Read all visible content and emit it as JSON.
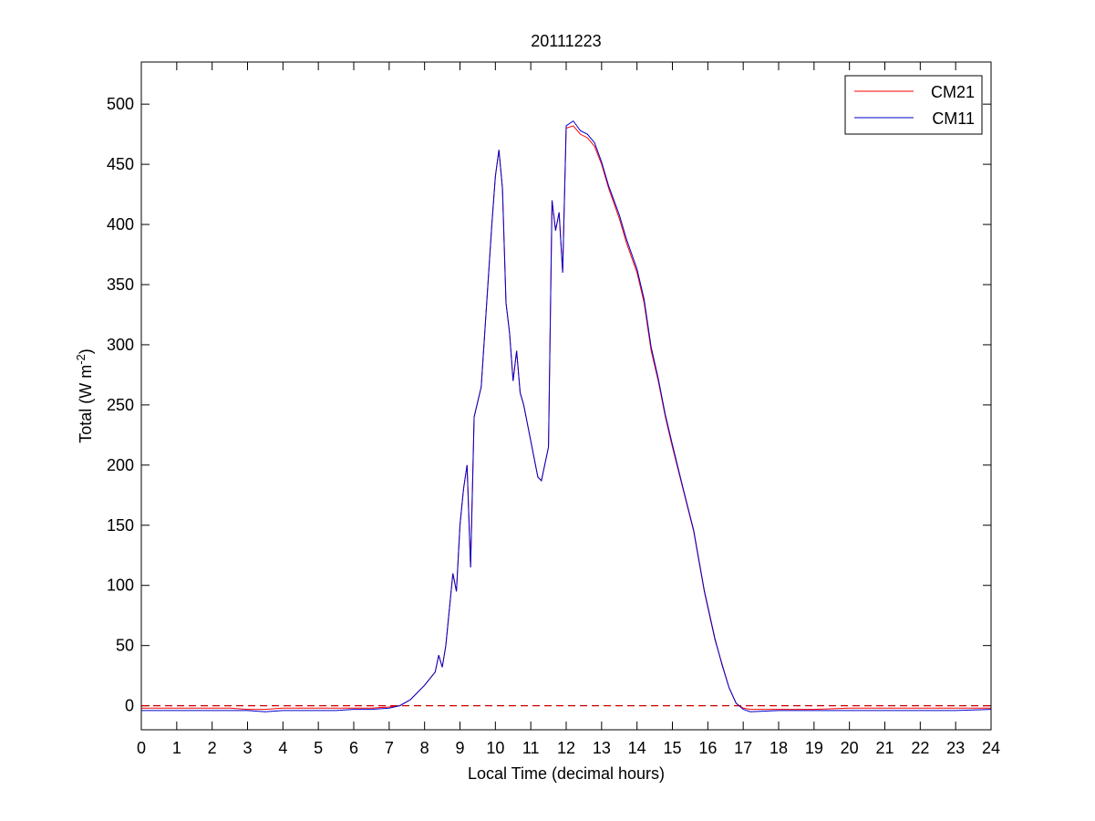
{
  "chart_data": {
    "type": "line",
    "title": "20111223",
    "xlabel": "Local Time (decimal hours)",
    "ylabel": [
      "Total (W m",
      "-2",
      ")"
    ],
    "x": [
      0,
      0.5,
      1,
      1.5,
      2,
      2.5,
      3,
      3.5,
      4,
      4.5,
      5,
      5.5,
      6,
      6.5,
      7,
      7.3,
      7.6,
      8,
      8.3,
      8.4,
      8.5,
      8.6,
      8.7,
      8.8,
      8.9,
      9.0,
      9.1,
      9.2,
      9.3,
      9.4,
      9.6,
      9.7,
      9.9,
      10.0,
      10.1,
      10.2,
      10.3,
      10.4,
      10.5,
      10.6,
      10.7,
      10.8,
      11.0,
      11.2,
      11.3,
      11.5,
      11.6,
      11.7,
      11.8,
      11.9,
      12.0,
      12.2,
      12.4,
      12.6,
      12.8,
      13.0,
      13.2,
      13.5,
      13.7,
      14.0,
      14.2,
      14.4,
      14.6,
      14.8,
      15.0,
      15.3,
      15.6,
      15.9,
      16.2,
      16.4,
      16.6,
      16.8,
      17.0,
      17.2,
      18,
      19,
      20,
      21,
      22,
      23,
      24
    ],
    "series": [
      {
        "name": "CM21",
        "color": "#ff0000",
        "values": [
          -2,
          -2,
          -2,
          -2,
          -2,
          -2,
          -3,
          -3,
          -2,
          -2,
          -2,
          -2,
          -2,
          -2,
          -1,
          0,
          5,
          17,
          28,
          42,
          32,
          50,
          80,
          110,
          95,
          150,
          180,
          200,
          115,
          240,
          265,
          310,
          400,
          440,
          462,
          430,
          335,
          310,
          270,
          295,
          260,
          250,
          220,
          190,
          187,
          215,
          420,
          395,
          410,
          360,
          480,
          482,
          475,
          472,
          465,
          450,
          430,
          405,
          385,
          360,
          335,
          295,
          270,
          240,
          215,
          180,
          145,
          95,
          55,
          35,
          15,
          2,
          -2,
          -3,
          -3,
          -3,
          -2,
          -2,
          -2,
          -2,
          -2
        ]
      },
      {
        "name": "CM11",
        "color": "#0000cc",
        "values": [
          -4,
          -4,
          -4,
          -4,
          -4,
          -4,
          -4,
          -5,
          -4,
          -4,
          -4,
          -4,
          -3,
          -3,
          -2,
          0,
          5,
          17,
          28,
          42,
          32,
          50,
          80,
          110,
          95,
          150,
          180,
          200,
          115,
          240,
          265,
          310,
          400,
          440,
          462,
          430,
          335,
          310,
          270,
          295,
          260,
          250,
          220,
          190,
          187,
          215,
          420,
          395,
          410,
          360,
          482,
          486,
          478,
          475,
          468,
          452,
          432,
          408,
          388,
          363,
          338,
          298,
          272,
          242,
          217,
          181,
          146,
          96,
          56,
          34,
          15,
          2,
          -3,
          -5,
          -4,
          -4,
          -4,
          -4,
          -4,
          -4,
          -3
        ]
      }
    ],
    "reference_line": {
      "value": 0,
      "color": "#cc0000",
      "style": "dashed"
    },
    "xlim": [
      0,
      24
    ],
    "xticks": [
      0,
      1,
      2,
      3,
      4,
      5,
      6,
      7,
      8,
      9,
      10,
      11,
      12,
      13,
      14,
      15,
      16,
      17,
      18,
      19,
      20,
      21,
      22,
      23,
      24
    ],
    "ylim": [
      -20,
      535
    ],
    "yticks": [
      0,
      50,
      100,
      150,
      200,
      250,
      300,
      350,
      400,
      450,
      500
    ],
    "legend": "northeast",
    "grid": false
  }
}
